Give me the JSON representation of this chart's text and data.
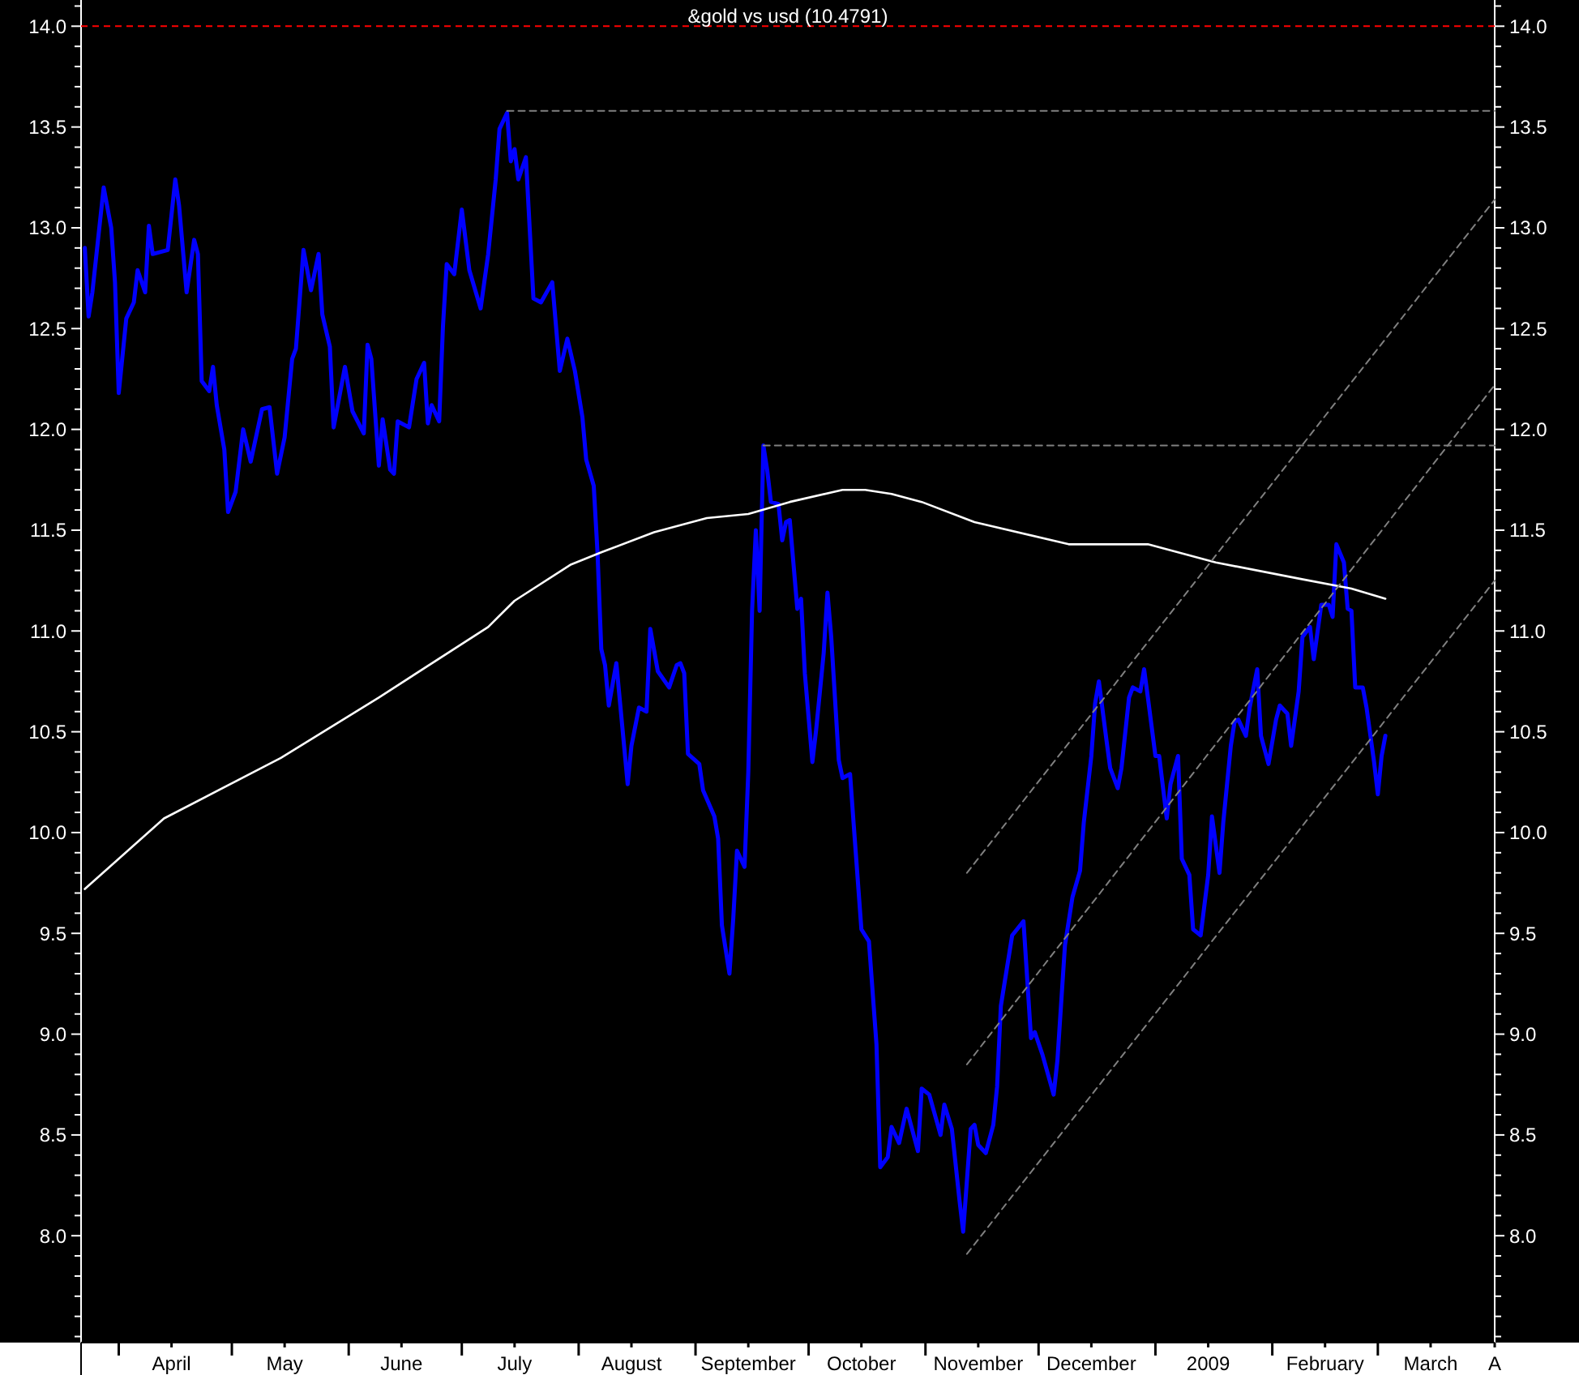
{
  "chart_data": {
    "type": "line",
    "title": "&gold vs usd (10.4791)",
    "xlim": [
      "2008-03-22",
      "2009-04-01"
    ],
    "xticks": [
      {
        "value": "2008-04-01",
        "label": null
      },
      {
        "value": "2008-04-15",
        "label": "April"
      },
      {
        "value": "2008-05-01",
        "label": null
      },
      {
        "value": "2008-05-15",
        "label": "May"
      },
      {
        "value": "2008-06-01",
        "label": null
      },
      {
        "value": "2008-06-15",
        "label": "June"
      },
      {
        "value": "2008-07-01",
        "label": null
      },
      {
        "value": "2008-07-15",
        "label": "July"
      },
      {
        "value": "2008-08-01",
        "label": null
      },
      {
        "value": "2008-08-15",
        "label": "August"
      },
      {
        "value": "2008-09-01",
        "label": null
      },
      {
        "value": "2008-09-15",
        "label": "September"
      },
      {
        "value": "2008-10-01",
        "label": null
      },
      {
        "value": "2008-10-15",
        "label": "October"
      },
      {
        "value": "2008-11-01",
        "label": null
      },
      {
        "value": "2008-11-15",
        "label": "November"
      },
      {
        "value": "2008-12-01",
        "label": null
      },
      {
        "value": "2008-12-15",
        "label": "December"
      },
      {
        "value": "2009-01-01",
        "label": null
      },
      {
        "value": "2009-01-15",
        "label": "2009"
      },
      {
        "value": "2009-02-01",
        "label": null
      },
      {
        "value": "2009-02-15",
        "label": "February"
      },
      {
        "value": "2009-03-01",
        "label": null
      },
      {
        "value": "2009-03-15",
        "label": "March"
      },
      {
        "value": "2009-04-01",
        "label": "A"
      }
    ],
    "ylim": [
      7.47,
      14.13
    ],
    "yticks": [
      {
        "value": 7.5,
        "label": null
      },
      {
        "value": 7.6,
        "label": null
      },
      {
        "value": 7.7,
        "label": null
      },
      {
        "value": 7.8,
        "label": null
      },
      {
        "value": 7.9,
        "label": null
      },
      {
        "value": 8,
        "label": "8.0"
      },
      {
        "value": 8.1,
        "label": null
      },
      {
        "value": 8.2,
        "label": null
      },
      {
        "value": 8.3,
        "label": null
      },
      {
        "value": 8.4,
        "label": null
      },
      {
        "value": 8.5,
        "label": "8.5"
      },
      {
        "value": 8.6,
        "label": null
      },
      {
        "value": 8.7,
        "label": null
      },
      {
        "value": 8.8,
        "label": null
      },
      {
        "value": 8.9,
        "label": null
      },
      {
        "value": 9,
        "label": "9.0"
      },
      {
        "value": 9.1,
        "label": null
      },
      {
        "value": 9.2,
        "label": null
      },
      {
        "value": 9.3,
        "label": null
      },
      {
        "value": 9.4,
        "label": null
      },
      {
        "value": 9.5,
        "label": "9.5"
      },
      {
        "value": 9.6,
        "label": null
      },
      {
        "value": 9.7,
        "label": null
      },
      {
        "value": 9.8,
        "label": null
      },
      {
        "value": 9.9,
        "label": null
      },
      {
        "value": 10,
        "label": "10.0"
      },
      {
        "value": 10.1,
        "label": null
      },
      {
        "value": 10.2,
        "label": null
      },
      {
        "value": 10.3,
        "label": null
      },
      {
        "value": 10.4,
        "label": null
      },
      {
        "value": 10.5,
        "label": "10.5"
      },
      {
        "value": 10.6,
        "label": null
      },
      {
        "value": 10.7,
        "label": null
      },
      {
        "value": 10.8,
        "label": null
      },
      {
        "value": 10.9,
        "label": null
      },
      {
        "value": 11,
        "label": "11.0"
      },
      {
        "value": 11.1,
        "label": null
      },
      {
        "value": 11.2,
        "label": null
      },
      {
        "value": 11.3,
        "label": null
      },
      {
        "value": 11.4,
        "label": null
      },
      {
        "value": 11.5,
        "label": "11.5"
      },
      {
        "value": 11.6,
        "label": null
      },
      {
        "value": 11.7,
        "label": null
      },
      {
        "value": 11.8,
        "label": null
      },
      {
        "value": 11.9,
        "label": null
      },
      {
        "value": 12,
        "label": "12.0"
      },
      {
        "value": 12.1,
        "label": null
      },
      {
        "value": 12.2,
        "label": null
      },
      {
        "value": 12.3,
        "label": null
      },
      {
        "value": 12.4,
        "label": null
      },
      {
        "value": 12.5,
        "label": "12.5"
      },
      {
        "value": 12.6,
        "label": null
      },
      {
        "value": 12.7,
        "label": null
      },
      {
        "value": 12.8,
        "label": null
      },
      {
        "value": 12.9,
        "label": null
      },
      {
        "value": 13,
        "label": "13.0"
      },
      {
        "value": 13.1,
        "label": null
      },
      {
        "value": 13.2,
        "label": null
      },
      {
        "value": 13.3,
        "label": null
      },
      {
        "value": 13.4,
        "label": null
      },
      {
        "value": 13.5,
        "label": "13.5"
      },
      {
        "value": 13.6,
        "label": null
      },
      {
        "value": 13.7,
        "label": null
      },
      {
        "value": 13.8,
        "label": null
      },
      {
        "value": 13.9,
        "label": null
      },
      {
        "value": 14,
        "label": "14.0"
      },
      {
        "value": 14.1,
        "label": null
      }
    ],
    "y2lim": [
      7.47,
      14.13
    ],
    "y2ticks": [
      {
        "value": 7.5,
        "label": null
      },
      {
        "value": 7.6,
        "label": null
      },
      {
        "value": 7.7,
        "label": null
      },
      {
        "value": 7.8,
        "label": null
      },
      {
        "value": 7.9,
        "label": null
      },
      {
        "value": 8,
        "label": "8.0"
      },
      {
        "value": 8.1,
        "label": null
      },
      {
        "value": 8.2,
        "label": null
      },
      {
        "value": 8.3,
        "label": null
      },
      {
        "value": 8.4,
        "label": null
      },
      {
        "value": 8.5,
        "label": "8.5"
      },
      {
        "value": 8.6,
        "label": null
      },
      {
        "value": 8.7,
        "label": null
      },
      {
        "value": 8.8,
        "label": null
      },
      {
        "value": 8.9,
        "label": null
      },
      {
        "value": 9,
        "label": "9.0"
      },
      {
        "value": 9.1,
        "label": null
      },
      {
        "value": 9.2,
        "label": null
      },
      {
        "value": 9.3,
        "label": null
      },
      {
        "value": 9.4,
        "label": null
      },
      {
        "value": 9.5,
        "label": "9.5"
      },
      {
        "value": 9.6,
        "label": null
      },
      {
        "value": 9.7,
        "label": null
      },
      {
        "value": 9.8,
        "label": null
      },
      {
        "value": 9.9,
        "label": null
      },
      {
        "value": 10,
        "label": "10.0"
      },
      {
        "value": 10.1,
        "label": null
      },
      {
        "value": 10.2,
        "label": null
      },
      {
        "value": 10.3,
        "label": null
      },
      {
        "value": 10.4,
        "label": null
      },
      {
        "value": 10.5,
        "label": "10.5"
      },
      {
        "value": 10.6,
        "label": null
      },
      {
        "value": 10.7,
        "label": null
      },
      {
        "value": 10.8,
        "label": null
      },
      {
        "value": 10.9,
        "label": null
      },
      {
        "value": 11,
        "label": "11.0"
      },
      {
        "value": 11.1,
        "label": null
      },
      {
        "value": 11.2,
        "label": null
      },
      {
        "value": 11.3,
        "label": null
      },
      {
        "value": 11.4,
        "label": null
      },
      {
        "value": 11.5,
        "label": "11.5"
      },
      {
        "value": 11.6,
        "label": null
      },
      {
        "value": 11.7,
        "label": null
      },
      {
        "value": 11.8,
        "label": null
      },
      {
        "value": 11.9,
        "label": null
      },
      {
        "value": 12,
        "label": "12.0"
      },
      {
        "value": 12.1,
        "label": null
      },
      {
        "value": 12.2,
        "label": null
      },
      {
        "value": 12.3,
        "label": null
      },
      {
        "value": 12.4,
        "label": null
      },
      {
        "value": 12.5,
        "label": "12.5"
      },
      {
        "value": 12.6,
        "label": null
      },
      {
        "value": 12.7,
        "label": null
      },
      {
        "value": 12.8,
        "label": null
      },
      {
        "value": 12.9,
        "label": null
      },
      {
        "value": 13,
        "label": "13.0"
      },
      {
        "value": 13.1,
        "label": null
      },
      {
        "value": 13.2,
        "label": null
      },
      {
        "value": 13.3,
        "label": null
      },
      {
        "value": 13.4,
        "label": null
      },
      {
        "value": 13.5,
        "label": "13.5"
      },
      {
        "value": 13.6,
        "label": null
      },
      {
        "value": 13.7,
        "label": null
      },
      {
        "value": 13.8,
        "label": null
      },
      {
        "value": 13.9,
        "label": null
      },
      {
        "value": 14,
        "label": "14.0"
      },
      {
        "value": 14.1,
        "label": null
      }
    ],
    "grid": false,
    "ref_lines": [
      {
        "axis": "y",
        "value": 14,
        "color": "#ff0000",
        "line_style": "dashed"
      }
    ],
    "series": [
      {
        "color": "#0000ff",
        "line_style": "solid",
        "x": [
          "2008-03-23",
          "2008-03-24",
          "2008-03-25",
          "2008-03-28",
          "2008-03-30",
          "2008-03-31",
          "2008-04-01",
          "2008-04-03",
          "2008-04-05",
          "2008-04-06",
          "2008-04-08",
          "2008-04-09",
          "2008-04-10",
          "2008-04-14",
          "2008-04-16",
          "2008-04-17",
          "2008-04-19",
          "2008-04-21",
          "2008-04-22",
          "2008-04-23",
          "2008-04-25",
          "2008-04-26",
          "2008-04-27",
          "2008-04-29",
          "2008-04-30",
          "2008-05-02",
          "2008-05-04",
          "2008-05-06",
          "2008-05-09",
          "2008-05-11",
          "2008-05-13",
          "2008-05-15",
          "2008-05-17",
          "2008-05-18",
          "2008-05-20",
          "2008-05-22",
          "2008-05-24",
          "2008-05-25",
          "2008-05-27",
          "2008-05-28",
          "2008-05-31",
          "2008-06-02",
          "2008-06-05",
          "2008-06-06",
          "2008-06-07",
          "2008-06-09",
          "2008-06-10",
          "2008-06-12",
          "2008-06-13",
          "2008-06-14",
          "2008-06-17",
          "2008-06-19",
          "2008-06-21",
          "2008-06-22",
          "2008-06-23",
          "2008-06-25",
          "2008-06-26",
          "2008-06-27",
          "2008-06-29",
          "2008-07-01",
          "2008-07-03",
          "2008-07-06",
          "2008-07-08",
          "2008-07-10",
          "2008-07-11",
          "2008-07-13",
          "2008-07-14",
          "2008-07-15",
          "2008-07-16",
          "2008-07-18",
          "2008-07-20",
          "2008-07-22",
          "2008-07-25",
          "2008-07-27",
          "2008-07-29",
          "2008-07-31",
          "2008-08-02",
          "2008-08-03",
          "2008-08-05",
          "2008-08-06",
          "2008-08-07",
          "2008-08-08",
          "2008-08-09",
          "2008-08-11",
          "2008-08-12",
          "2008-08-14",
          "2008-08-15",
          "2008-08-17",
          "2008-08-19",
          "2008-08-20",
          "2008-08-22",
          "2008-08-25",
          "2008-08-27",
          "2008-08-28",
          "2008-08-29",
          "2008-08-30",
          "2008-09-02",
          "2008-09-03",
          "2008-09-06",
          "2008-09-07",
          "2008-09-08",
          "2008-09-10",
          "2008-09-11",
          "2008-09-12",
          "2008-09-14",
          "2008-09-15",
          "2008-09-16",
          "2008-09-17",
          "2008-09-18",
          "2008-09-19",
          "2008-09-20",
          "2008-09-21",
          "2008-09-23",
          "2008-09-24",
          "2008-09-25",
          "2008-09-26",
          "2008-09-28",
          "2008-09-29",
          "2008-09-30",
          "2008-10-02",
          "2008-10-03",
          "2008-10-05",
          "2008-10-06",
          "2008-10-07",
          "2008-10-09",
          "2008-10-10",
          "2008-10-12",
          "2008-10-13",
          "2008-10-15",
          "2008-10-17",
          "2008-10-19",
          "2008-10-20",
          "2008-10-22",
          "2008-10-23",
          "2008-10-25",
          "2008-10-27",
          "2008-10-30",
          "2008-10-31",
          "2008-11-02",
          "2008-11-05",
          "2008-11-06",
          "2008-11-08",
          "2008-11-10",
          "2008-11-11",
          "2008-11-13",
          "2008-11-14",
          "2008-11-15",
          "2008-11-17",
          "2008-11-19",
          "2008-11-20",
          "2008-11-21",
          "2008-11-24",
          "2008-11-27",
          "2008-11-29",
          "2008-11-30",
          "2008-12-02",
          "2008-12-05",
          "2008-12-06",
          "2008-12-08",
          "2008-12-10",
          "2008-12-12",
          "2008-12-13",
          "2008-12-15",
          "2008-12-16",
          "2008-12-17",
          "2008-12-19",
          "2008-12-20",
          "2008-12-22",
          "2008-12-23",
          "2008-12-25",
          "2008-12-26",
          "2008-12-28",
          "2008-12-29",
          "2008-12-30",
          "2009-01-01",
          "2009-01-02",
          "2009-01-04",
          "2009-01-05",
          "2009-01-07",
          "2009-01-08",
          "2009-01-10",
          "2009-01-11",
          "2009-01-13",
          "2009-01-15",
          "2009-01-16",
          "2009-01-18",
          "2009-01-19",
          "2009-01-21",
          "2009-01-22",
          "2009-01-23",
          "2009-01-25",
          "2009-01-26",
          "2009-01-28",
          "2009-01-29",
          "2009-01-31",
          "2009-02-02",
          "2009-02-03",
          "2009-02-05",
          "2009-02-06",
          "2009-02-08",
          "2009-02-09",
          "2009-02-11",
          "2009-02-12",
          "2009-02-14",
          "2009-02-16",
          "2009-02-17",
          "2009-02-18",
          "2009-02-20",
          "2009-02-21",
          "2009-02-22",
          "2009-02-23",
          "2009-02-25",
          "2009-02-26",
          "2009-02-28",
          "2009-03-01",
          "2009-03-02",
          "2009-03-03"
        ],
        "values": [
          12.9,
          12.56,
          12.68,
          13.2,
          13.0,
          12.73,
          12.18,
          12.55,
          12.63,
          12.79,
          12.68,
          13.01,
          12.87,
          12.89,
          13.24,
          13.11,
          12.68,
          12.94,
          12.87,
          12.24,
          12.19,
          12.31,
          12.12,
          11.9,
          11.59,
          11.69,
          12.0,
          11.84,
          12.1,
          12.11,
          11.78,
          11.96,
          12.35,
          12.4,
          12.89,
          12.69,
          12.87,
          12.57,
          12.41,
          12.01,
          12.31,
          12.09,
          11.98,
          12.42,
          12.35,
          11.82,
          12.05,
          11.8,
          11.78,
          12.04,
          12.01,
          12.25,
          12.33,
          12.03,
          12.12,
          12.04,
          12.51,
          12.82,
          12.77,
          13.09,
          12.79,
          12.6,
          12.87,
          13.24,
          13.49,
          13.57,
          13.33,
          13.39,
          13.24,
          13.35,
          12.65,
          12.63,
          12.73,
          12.29,
          12.45,
          12.29,
          12.06,
          11.85,
          11.72,
          11.39,
          10.91,
          10.83,
          10.63,
          10.84,
          10.64,
          10.24,
          10.43,
          10.62,
          10.6,
          11.01,
          10.8,
          10.72,
          10.83,
          10.84,
          10.79,
          10.39,
          10.34,
          10.21,
          10.08,
          9.97,
          9.54,
          9.3,
          9.57,
          9.91,
          9.83,
          10.3,
          11.1,
          11.5,
          11.1,
          11.92,
          11.8,
          11.64,
          11.63,
          11.45,
          11.54,
          11.55,
          11.11,
          11.16,
          10.79,
          10.35,
          10.51,
          10.89,
          11.19,
          10.97,
          10.36,
          10.27,
          10.29,
          10.03,
          9.52,
          9.46,
          8.95,
          8.34,
          8.39,
          8.54,
          8.46,
          8.63,
          8.42,
          8.73,
          8.7,
          8.5,
          8.65,
          8.53,
          8.18,
          8.02,
          8.53,
          8.55,
          8.45,
          8.41,
          8.55,
          8.74,
          9.14,
          9.49,
          9.56,
          8.98,
          9.01,
          8.9,
          8.7,
          8.87,
          9.44,
          9.68,
          9.81,
          10.05,
          10.38,
          10.64,
          10.75,
          10.46,
          10.32,
          10.22,
          10.32,
          10.67,
          10.72,
          10.7,
          10.81,
          10.67,
          10.38,
          10.38,
          10.07,
          10.24,
          10.38,
          9.87,
          9.79,
          9.52,
          9.49,
          9.79,
          10.08,
          9.8,
          10.05,
          10.43,
          10.55,
          10.56,
          10.48,
          10.62,
          10.81,
          10.48,
          10.34,
          10.56,
          10.63,
          10.59,
          10.43,
          10.7,
          10.97,
          11.02,
          10.86,
          11.13,
          11.13,
          11.07,
          11.43,
          11.34,
          11.11,
          11.1,
          10.72,
          10.72,
          10.62,
          10.35,
          10.19,
          10.38,
          10.48
        ]
      },
      {
        "color": "#ffffff",
        "line_style": "solid",
        "x": [
          "2008-03-23",
          "2008-04-13",
          "2008-05-14",
          "2008-06-09",
          "2008-07-08",
          "2008-07-15",
          "2008-07-30",
          "2008-08-07",
          "2008-08-21",
          "2008-09-04",
          "2008-09-15",
          "2008-09-26",
          "2008-10-10",
          "2008-10-16",
          "2008-10-23",
          "2008-10-31",
          "2008-11-14",
          "2008-12-09",
          "2008-12-30",
          "2009-01-17",
          "2009-02-08",
          "2009-02-22",
          "2009-03-03"
        ],
        "values": [
          9.72,
          10.07,
          10.37,
          10.67,
          11.02,
          11.15,
          11.33,
          11.39,
          11.49,
          11.56,
          11.58,
          11.64,
          11.7,
          11.7,
          11.68,
          11.64,
          11.54,
          11.43,
          11.43,
          11.34,
          11.26,
          11.21,
          11.16
        ]
      },
      {
        "color": "#808080",
        "line_style": "dashed",
        "x": [
          "2008-11-12",
          "2009-04-01"
        ],
        "values": [
          9.8,
          13.14
        ]
      },
      {
        "color": "#808080",
        "line_style": "dashed",
        "x": [
          "2008-11-12",
          "2009-04-01"
        ],
        "values": [
          8.85,
          12.22
        ]
      },
      {
        "color": "#808080",
        "line_style": "dashed",
        "x": [
          "2008-11-12",
          "2009-04-01"
        ],
        "values": [
          7.91,
          11.25
        ]
      },
      {
        "color": "#808080",
        "line_style": "dashed",
        "x": [
          "2008-07-13",
          "2009-04-01"
        ],
        "values": [
          13.58,
          13.58
        ]
      },
      {
        "color": "#808080",
        "line_style": "dashed",
        "x": [
          "2008-09-19",
          "2009-04-01"
        ],
        "values": [
          11.92,
          11.92
        ]
      }
    ]
  }
}
